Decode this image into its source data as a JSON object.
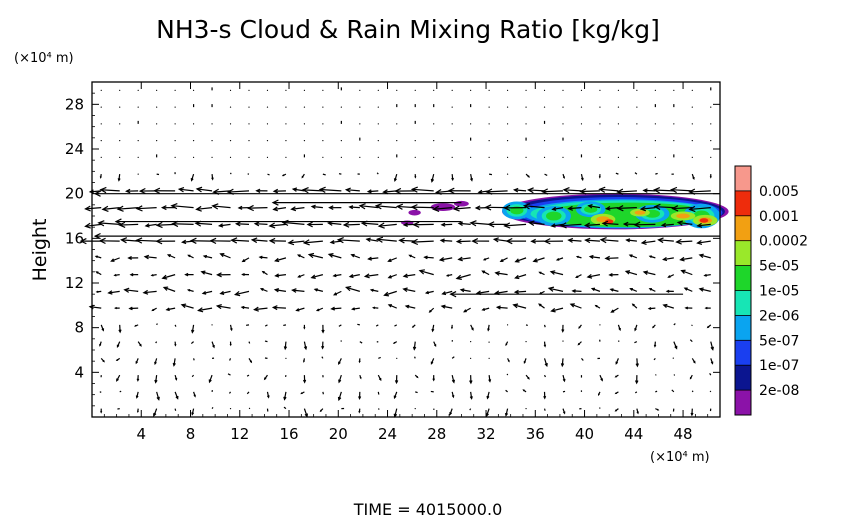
{
  "chart_data": {
    "type": "contour",
    "title": "NH3-s Cloud & Rain Mixing Ratio [kg/kg]",
    "ylabel": "Height",
    "x_unit": "(×10⁴ m)",
    "y_unit": "(×10⁴ m)",
    "xlim": [
      0,
      51
    ],
    "ylim": [
      0,
      30
    ],
    "x_ticks": [
      4,
      8,
      12,
      16,
      20,
      24,
      28,
      32,
      36,
      40,
      44,
      48
    ],
    "y_ticks": [
      4,
      8,
      12,
      16,
      20,
      24,
      28
    ],
    "time_label": "TIME = 4015000.0",
    "colorbar": {
      "levels": [
        "2e-08",
        "1e-07",
        "5e-07",
        "2e-06",
        "1e-05",
        "5e-05",
        "0.0002",
        "0.001",
        "0.005"
      ],
      "colors": [
        "#8b12a8",
        "#0b1590",
        "#1a3ff0",
        "#0aa4f0",
        "#17e5b5",
        "#1ed62a",
        "#9ae82a",
        "#f2a012",
        "#ee2c0c",
        "#f7988c"
      ]
    },
    "cloud_region": {
      "x_range": [
        33,
        51
      ],
      "y_range": [
        17,
        20
      ]
    },
    "wind_field": {
      "grid_dx": 1.5,
      "grid_dy": 1.5,
      "strong_jets_y": [
        20,
        16.2,
        11
      ]
    }
  }
}
